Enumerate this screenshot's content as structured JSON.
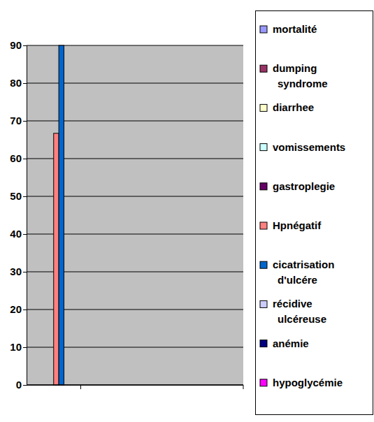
{
  "chart_data": {
    "type": "bar",
    "categories": [
      null
    ],
    "series": [
      {
        "name": "mortalité",
        "color": "#9999ff",
        "values": [
          0
        ]
      },
      {
        "name": "dumping syndrome",
        "color": "#993366",
        "values": [
          0
        ]
      },
      {
        "name": "diarrhee",
        "color": "#ffffcc",
        "values": [
          0
        ]
      },
      {
        "name": "vomissements",
        "color": "#ccffff",
        "values": [
          0
        ]
      },
      {
        "name": "gastroplegie",
        "color": "#660066",
        "values": [
          0
        ]
      },
      {
        "name": "Hpnégatif",
        "color": "#ff8080",
        "values": [
          66.7
        ]
      },
      {
        "name": "cicatrisation d'ulcére",
        "color": "#0066cc",
        "values": [
          90
        ]
      },
      {
        "name": "récidive ulcéreuse",
        "color": "#ccccff",
        "values": [
          0
        ]
      },
      {
        "name": "anémie",
        "color": "#000080",
        "values": [
          0
        ]
      },
      {
        "name": "hypoglycémie",
        "color": "#ff00ff",
        "values": [
          0
        ]
      }
    ],
    "ylim": [
      0,
      90
    ],
    "yticks": [
      0,
      10,
      20,
      30,
      40,
      50,
      60,
      70,
      80,
      90
    ],
    "grid": true,
    "legend": "right"
  }
}
